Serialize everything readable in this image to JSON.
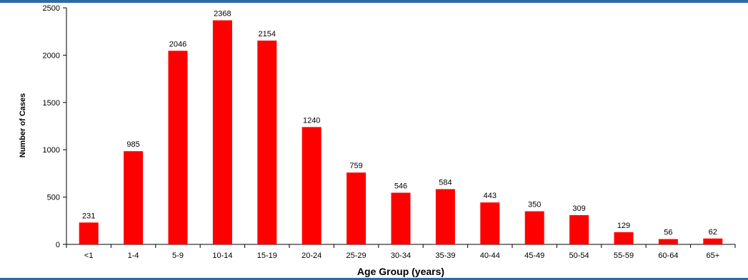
{
  "chart_data": {
    "type": "bar",
    "title": "",
    "xlabel": "Age Group (years)",
    "ylabel": "Number of Cases",
    "categories": [
      "<1",
      "1-4",
      "5-9",
      "10-14",
      "15-19",
      "20-24",
      "25-29",
      "30-34",
      "35-39",
      "40-44",
      "45-49",
      "50-54",
      "55-59",
      "60-64",
      "65+"
    ],
    "values": [
      231,
      985,
      2046,
      2368,
      2154,
      1240,
      759,
      546,
      584,
      443,
      350,
      309,
      129,
      56,
      62
    ],
    "value_labels": [
      "231",
      "985",
      "2046",
      "2368",
      "2154",
      "1240",
      "759",
      "546",
      "584",
      "443",
      "350",
      "309",
      "129",
      "56",
      "62"
    ],
    "yticks": [
      0,
      500,
      1000,
      1500,
      2000,
      2500
    ],
    "ytick_labels": [
      "0",
      "500",
      "1000",
      "1500",
      "2000",
      "2500"
    ],
    "ylim": [
      0,
      2500
    ],
    "grid": false,
    "legend": "none",
    "bar_color": "#ff0000",
    "axis_color": "#000000",
    "frame_color": "#2f6aa3"
  }
}
